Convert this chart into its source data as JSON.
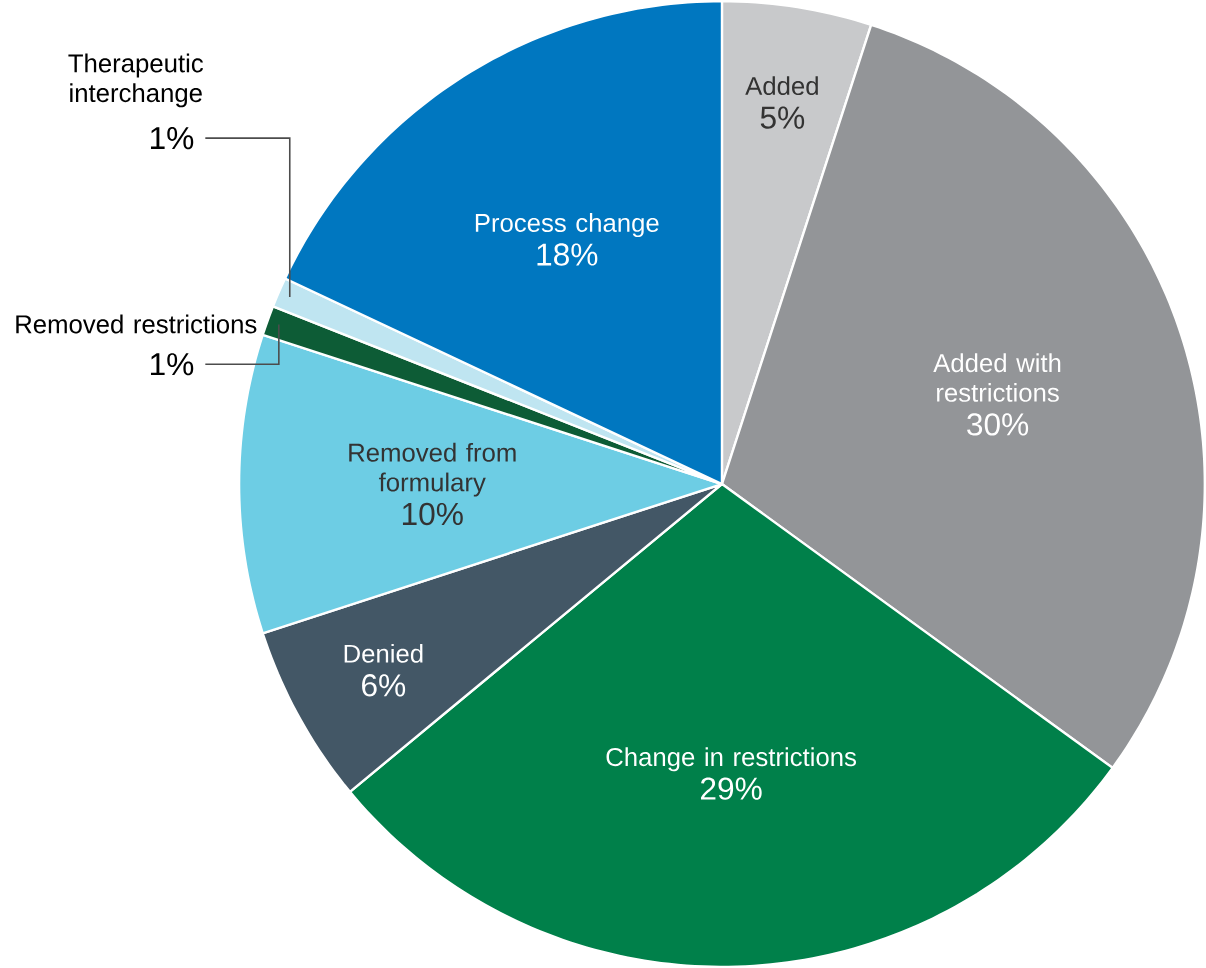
{
  "chart_data": {
    "type": "pie",
    "categories": [
      "Added",
      "Added with restrictions",
      "Change in restrictions",
      "Denied",
      "Removed from formulary",
      "Removed restrictions",
      "Therapeutic interchange",
      "Process change"
    ],
    "values": [
      5,
      30,
      29,
      6,
      10,
      1,
      1,
      18
    ],
    "value_labels": [
      "5%",
      "30%",
      "29%",
      "6%",
      "10%",
      "1%",
      "1%",
      "18%"
    ],
    "colors": [
      "#c8c9cb",
      "#939598",
      "#00804a",
      "#435766",
      "#6dcde4",
      "#0d5c36",
      "#bfe5f1",
      "#0077c0"
    ]
  }
}
